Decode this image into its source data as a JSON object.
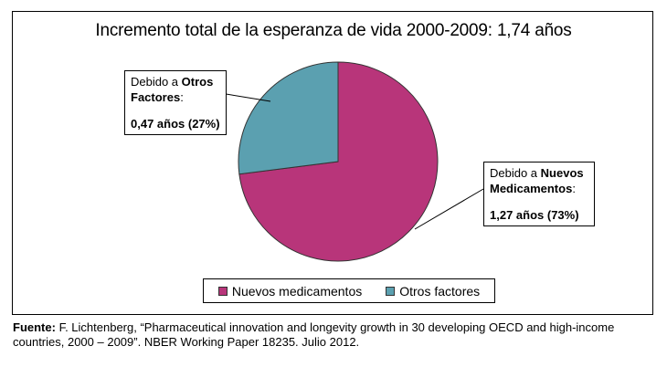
{
  "chart_data": {
    "type": "pie",
    "title": "Incremento total de la esperanza de vida 2000-2009: 1,74 años",
    "slices": [
      {
        "name": "Nuevos medicamentos",
        "value": 1.27,
        "percent": 73,
        "color": "#b8357a"
      },
      {
        "name": "Otros factores",
        "value": 0.47,
        "percent": 27,
        "color": "#5ba0b0"
      }
    ],
    "callouts": {
      "otros": {
        "prefix": "Debido a ",
        "bold1": "Otros",
        "bold2": "Factores",
        "suffix": ":",
        "value": "0,47 años (27%)"
      },
      "nuevos": {
        "prefix": "Debido a ",
        "bold1": "Nuevos",
        "bold2": "Medicamentos",
        "suffix": ":",
        "value": "1,27 años (73%)"
      }
    },
    "legend": {
      "placement": "bottom",
      "items": [
        "Nuevos medicamentos",
        "Otros factores"
      ]
    }
  },
  "source": {
    "label": "Fuente:",
    "text": " F. Lichtenberg, “Pharmaceutical innovation and longevity growth in 30 developing OECD and high-income countries, 2000 – 2009”. NBER Working Paper 18235. Julio 2012."
  }
}
